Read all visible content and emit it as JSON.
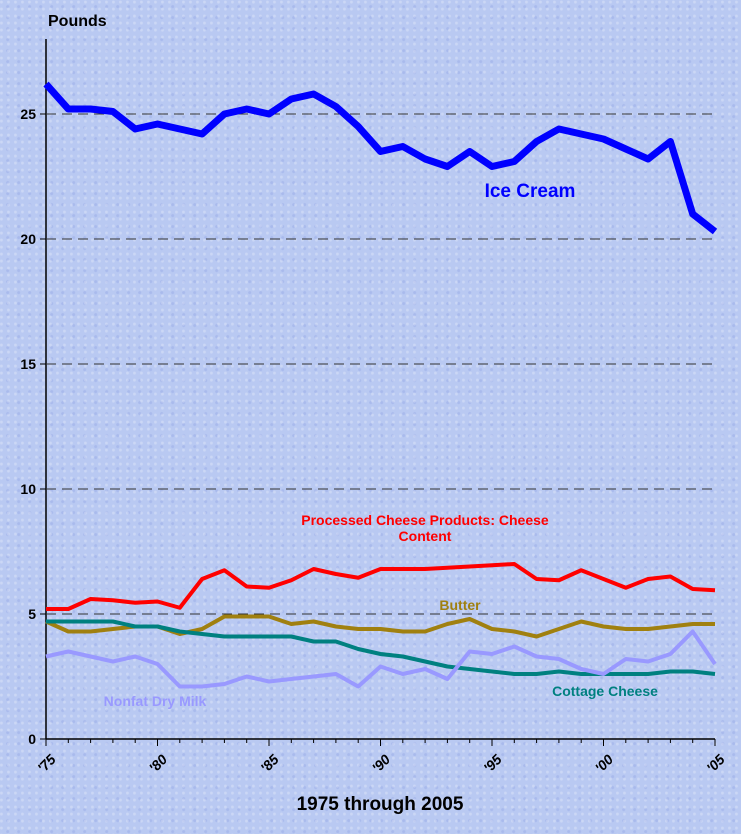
{
  "chart_data": {
    "type": "line",
    "y_axis_label": "Pounds",
    "x_axis_label": "1975 through 2005",
    "categories": [
      "'75",
      null,
      null,
      null,
      null,
      "'80",
      null,
      null,
      null,
      null,
      "'85",
      null,
      null,
      null,
      null,
      "'90",
      null,
      null,
      null,
      null,
      "'95",
      null,
      null,
      null,
      null,
      "'00",
      null,
      null,
      null,
      null,
      "'05"
    ],
    "series": [
      {
        "name": "Ice Cream",
        "color": "#0000ff",
        "values": [
          26.2,
          25.2,
          25.2,
          25.1,
          24.4,
          24.6,
          24.4,
          24.2,
          25.0,
          25.2,
          25.0,
          25.6,
          25.8,
          25.3,
          24.5,
          23.5,
          23.7,
          23.2,
          22.9,
          23.5,
          22.9,
          23.1,
          23.9,
          24.4,
          24.2,
          24.0,
          23.6,
          23.2,
          23.9,
          21.0,
          20.3
        ]
      },
      {
        "name": "Processed Cheese Products: Cheese Content",
        "color": "#ff0000",
        "values": [
          5.2,
          5.2,
          5.6,
          5.55,
          5.45,
          5.5,
          5.25,
          6.4,
          6.75,
          6.1,
          6.05,
          6.35,
          6.8,
          6.6,
          6.45,
          6.8,
          6.8,
          6.8,
          6.85,
          6.9,
          6.95,
          7.0,
          6.4,
          6.35,
          6.75,
          6.4,
          6.05,
          6.4,
          6.5,
          6.0,
          5.95
        ]
      },
      {
        "name": "Butter",
        "color": "#a08010",
        "values": [
          4.7,
          4.3,
          4.3,
          4.4,
          4.5,
          4.5,
          4.2,
          4.4,
          4.9,
          4.9,
          4.9,
          4.6,
          4.7,
          4.5,
          4.4,
          4.4,
          4.3,
          4.3,
          4.6,
          4.8,
          4.4,
          4.3,
          4.1,
          4.4,
          4.7,
          4.5,
          4.4,
          4.4,
          4.5,
          4.6,
          4.6
        ]
      },
      {
        "name": "Cottage Cheese",
        "color": "#008080",
        "values": [
          4.7,
          4.7,
          4.7,
          4.7,
          4.5,
          4.5,
          4.3,
          4.2,
          4.1,
          4.1,
          4.1,
          4.1,
          3.9,
          3.9,
          3.6,
          3.4,
          3.3,
          3.1,
          2.9,
          2.8,
          2.7,
          2.6,
          2.6,
          2.7,
          2.6,
          2.6,
          2.6,
          2.6,
          2.7,
          2.7,
          2.6
        ]
      },
      {
        "name": "Nonfat Dry Milk",
        "color": "#9999ff",
        "values": [
          3.3,
          3.5,
          3.3,
          3.1,
          3.3,
          3.0,
          2.1,
          2.1,
          2.2,
          2.5,
          2.3,
          2.4,
          2.5,
          2.6,
          2.1,
          2.9,
          2.6,
          2.8,
          2.4,
          3.5,
          3.4,
          3.7,
          3.3,
          3.2,
          2.8,
          2.6,
          3.2,
          3.1,
          3.4,
          4.3,
          3.0
        ]
      }
    ],
    "ylim": [
      0,
      28
    ],
    "yticks": [
      0,
      5,
      10,
      15,
      20,
      25
    ],
    "grid": true
  }
}
